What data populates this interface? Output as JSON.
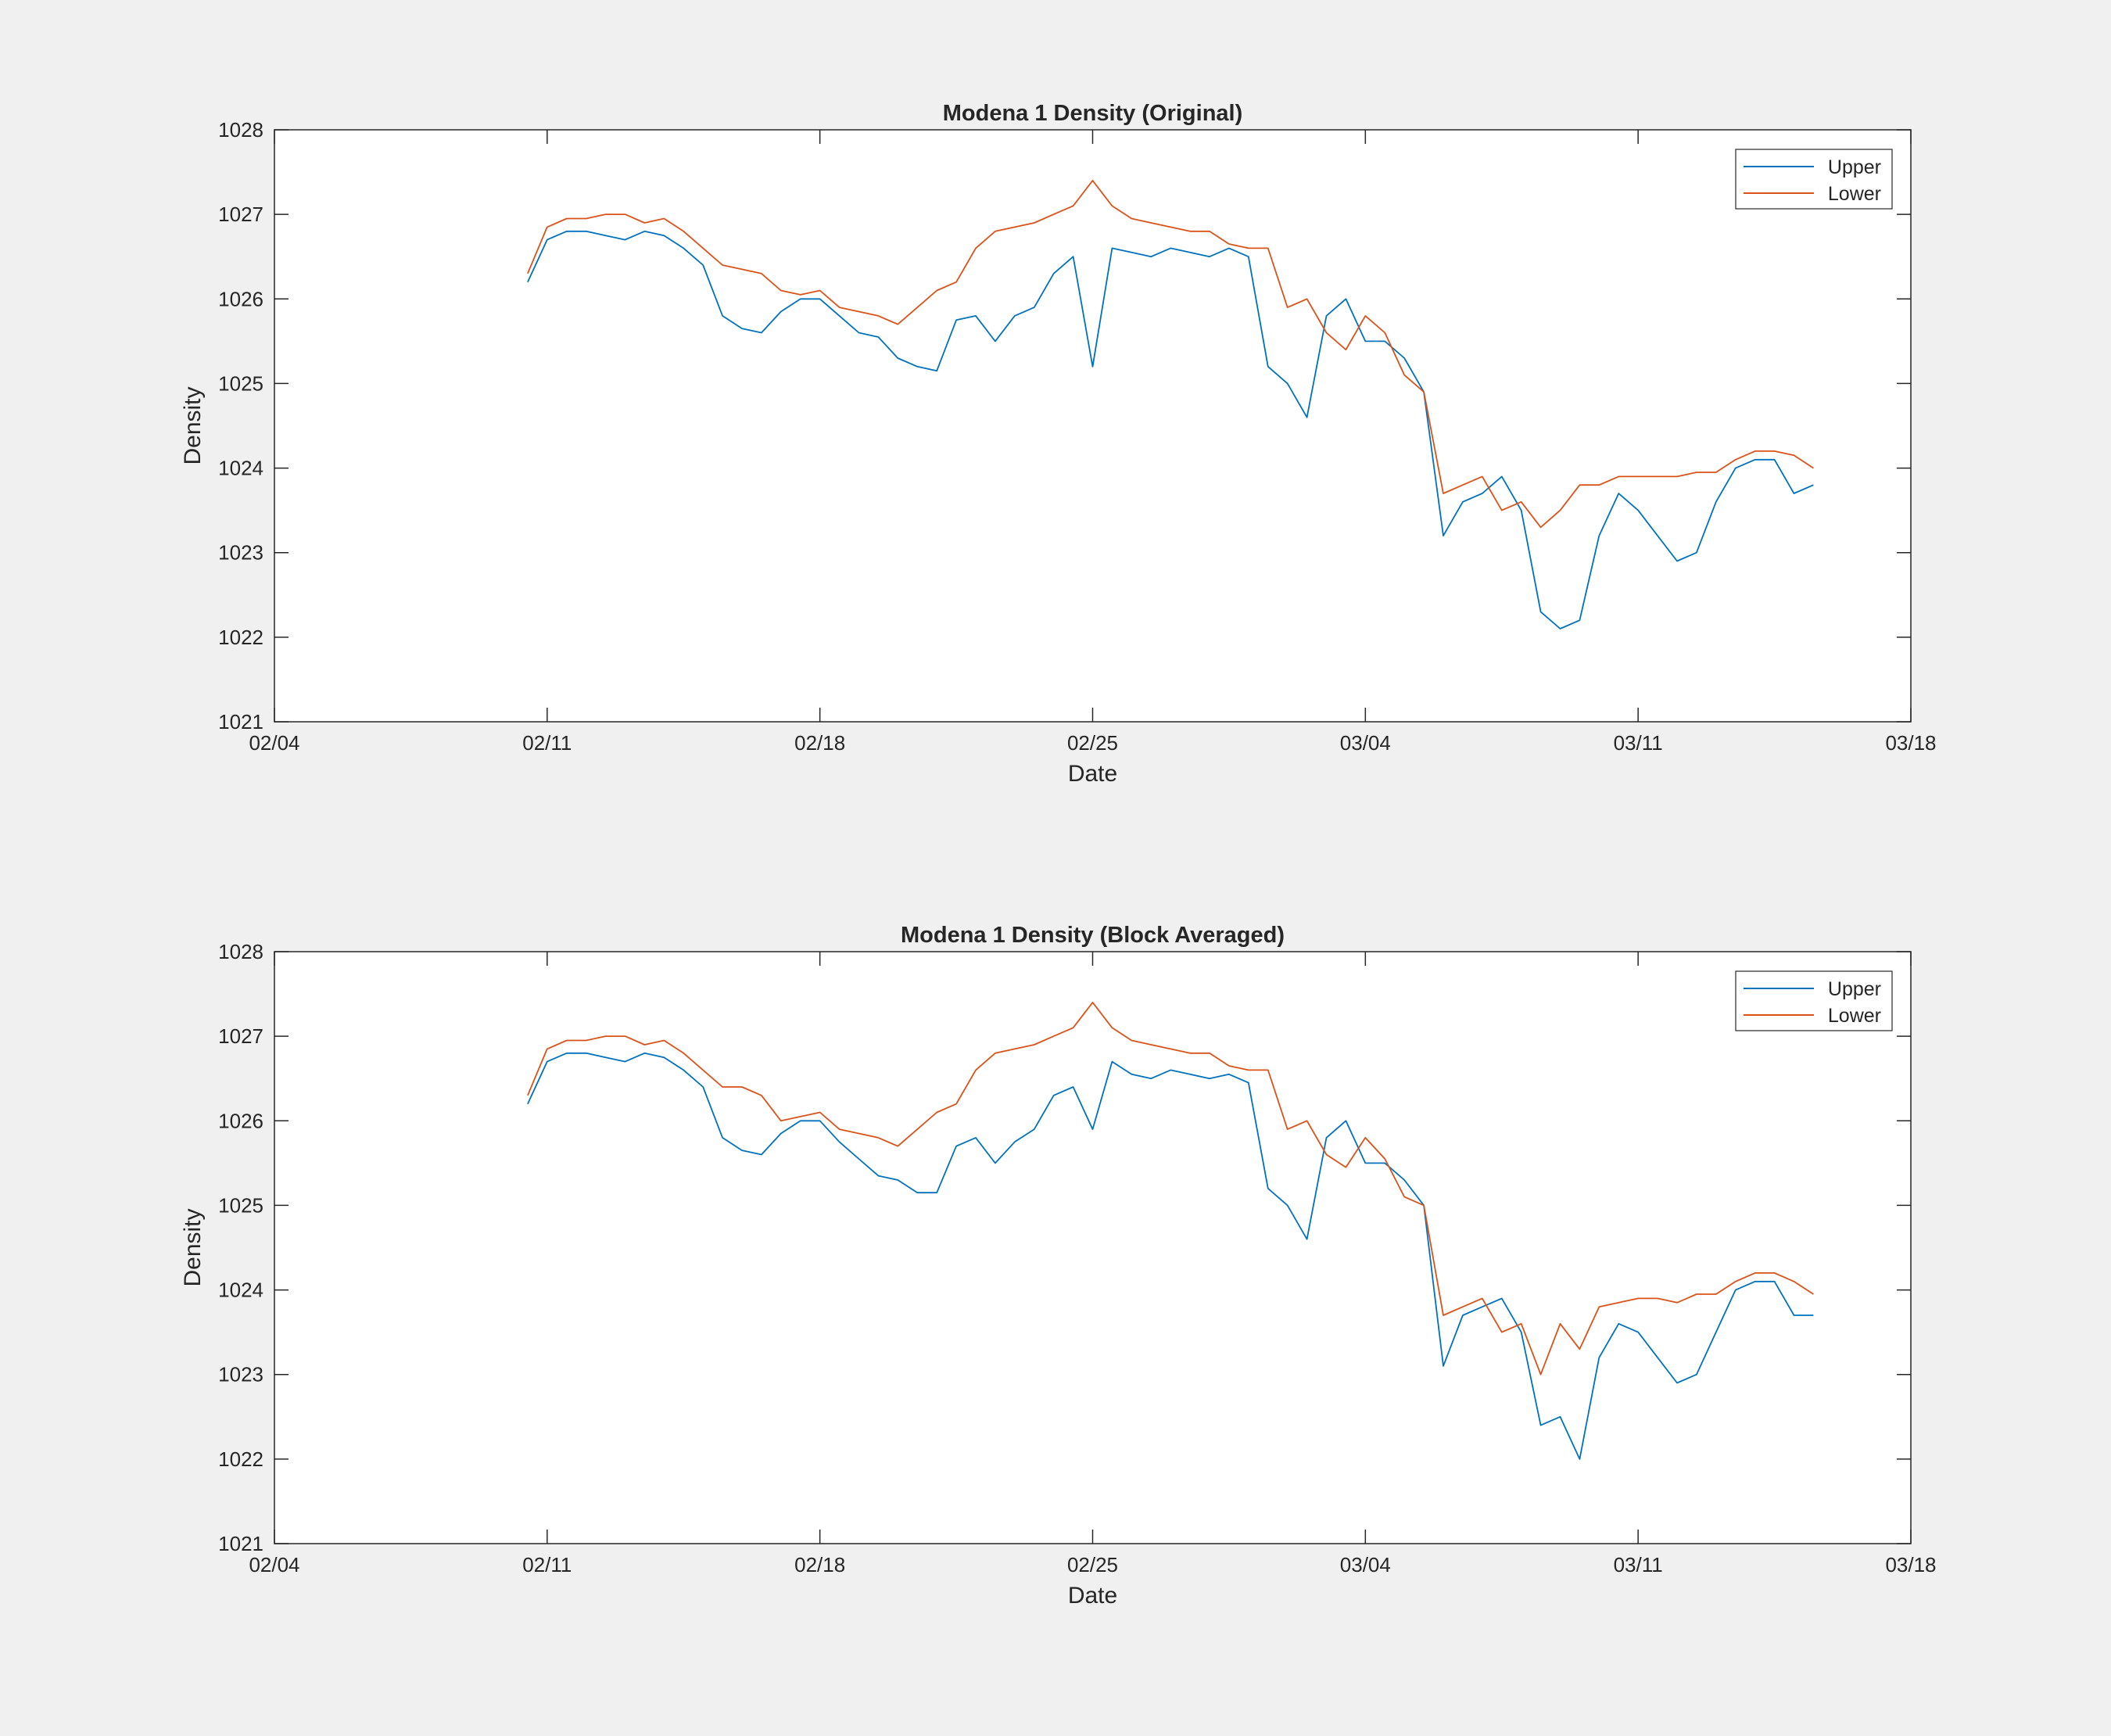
{
  "figure": {
    "background": "#f0f0f0"
  },
  "colors": {
    "upper": "#0072bd",
    "lower": "#d95319"
  },
  "chart_data": [
    {
      "type": "line",
      "title": "Modena 1 Density (Original)",
      "xlabel": "Date",
      "ylabel": "Density",
      "xlim": [
        "2023-02-04",
        "2023-03-18"
      ],
      "ylim": [
        1021,
        1028
      ],
      "xtick_labels": [
        "02/04",
        "02/11",
        "02/18",
        "02/25",
        "03/04",
        "03/11",
        "03/18"
      ],
      "ytick_labels": [
        "1021",
        "1022",
        "1023",
        "1024",
        "1025",
        "1026",
        "1027",
        "1028"
      ],
      "legend": {
        "position": "top-right",
        "entries": [
          "Upper",
          "Lower"
        ]
      },
      "grid": false,
      "series": [
        {
          "name": "Upper",
          "color": "#0072bd",
          "x": [
            "2023-02-10 12:00",
            "2023-02-11 00:00",
            "2023-02-11 12:00",
            "2023-02-12 00:00",
            "2023-02-12 12:00",
            "2023-02-13 00:00",
            "2023-02-13 12:00",
            "2023-02-14 00:00",
            "2023-02-14 12:00",
            "2023-02-15 00:00",
            "2023-02-15 12:00",
            "2023-02-16 00:00",
            "2023-02-16 12:00",
            "2023-02-17 00:00",
            "2023-02-17 12:00",
            "2023-02-18 00:00",
            "2023-02-18 12:00",
            "2023-02-19 00:00",
            "2023-02-19 12:00",
            "2023-02-20 00:00",
            "2023-02-20 12:00",
            "2023-02-21 00:00",
            "2023-02-21 12:00",
            "2023-02-22 00:00",
            "2023-02-22 12:00",
            "2023-02-23 00:00",
            "2023-02-23 12:00",
            "2023-02-24 00:00",
            "2023-02-24 12:00",
            "2023-02-25 00:00",
            "2023-02-25 12:00",
            "2023-02-26 00:00",
            "2023-02-26 12:00",
            "2023-02-27 00:00",
            "2023-02-27 12:00",
            "2023-02-28 00:00",
            "2023-02-28 12:00",
            "2023-03-01 00:00",
            "2023-03-01 12:00",
            "2023-03-02 00:00",
            "2023-03-02 12:00",
            "2023-03-03 00:00",
            "2023-03-03 12:00",
            "2023-03-04 00:00",
            "2023-03-04 12:00",
            "2023-03-05 00:00",
            "2023-03-05 12:00",
            "2023-03-06 00:00",
            "2023-03-06 12:00",
            "2023-03-07 00:00",
            "2023-03-07 12:00",
            "2023-03-08 00:00",
            "2023-03-08 12:00",
            "2023-03-09 00:00",
            "2023-03-09 12:00",
            "2023-03-10 00:00",
            "2023-03-10 12:00",
            "2023-03-11 00:00",
            "2023-03-11 12:00",
            "2023-03-12 00:00",
            "2023-03-12 12:00",
            "2023-03-13 00:00",
            "2023-03-13 12:00",
            "2023-03-14 00:00",
            "2023-03-14 12:00",
            "2023-03-15 00:00",
            "2023-03-15 12:00"
          ],
          "values": [
            1026.2,
            1026.7,
            1026.8,
            1026.8,
            1026.75,
            1026.7,
            1026.8,
            1026.75,
            1026.6,
            1026.4,
            1025.8,
            1025.65,
            1025.6,
            1025.85,
            1026.0,
            1026.0,
            1025.8,
            1025.6,
            1025.55,
            1025.3,
            1025.2,
            1025.15,
            1025.75,
            1025.8,
            1025.5,
            1025.8,
            1025.9,
            1026.3,
            1026.5,
            1025.2,
            1026.6,
            1026.55,
            1026.5,
            1026.6,
            1026.55,
            1026.5,
            1026.6,
            1026.5,
            1025.2,
            1025.0,
            1024.6,
            1025.8,
            1026.0,
            1025.5,
            1025.5,
            1025.3,
            1024.9,
            1023.2,
            1023.6,
            1023.7,
            1023.9,
            1023.5,
            1022.3,
            1022.1,
            1022.2,
            1023.2,
            1023.7,
            1023.5,
            1023.2,
            1022.9,
            1023.0,
            1023.6,
            1024.0,
            1024.1,
            1024.1,
            1023.7,
            1023.8
          ]
        },
        {
          "name": "Lower",
          "color": "#d95319",
          "x": [
            "2023-02-10 12:00",
            "2023-02-11 00:00",
            "2023-02-11 12:00",
            "2023-02-12 00:00",
            "2023-02-12 12:00",
            "2023-02-13 00:00",
            "2023-02-13 12:00",
            "2023-02-14 00:00",
            "2023-02-14 12:00",
            "2023-02-15 00:00",
            "2023-02-15 12:00",
            "2023-02-16 00:00",
            "2023-02-16 12:00",
            "2023-02-17 00:00",
            "2023-02-17 12:00",
            "2023-02-18 00:00",
            "2023-02-18 12:00",
            "2023-02-19 00:00",
            "2023-02-19 12:00",
            "2023-02-20 00:00",
            "2023-02-20 12:00",
            "2023-02-21 00:00",
            "2023-02-21 12:00",
            "2023-02-22 00:00",
            "2023-02-22 12:00",
            "2023-02-23 00:00",
            "2023-02-23 12:00",
            "2023-02-24 00:00",
            "2023-02-24 12:00",
            "2023-02-25 00:00",
            "2023-02-25 12:00",
            "2023-02-26 00:00",
            "2023-02-26 12:00",
            "2023-02-27 00:00",
            "2023-02-27 12:00",
            "2023-02-28 00:00",
            "2023-02-28 12:00",
            "2023-03-01 00:00",
            "2023-03-01 12:00",
            "2023-03-02 00:00",
            "2023-03-02 12:00",
            "2023-03-03 00:00",
            "2023-03-03 12:00",
            "2023-03-04 00:00",
            "2023-03-04 12:00",
            "2023-03-05 00:00",
            "2023-03-05 12:00",
            "2023-03-06 00:00",
            "2023-03-06 12:00",
            "2023-03-07 00:00",
            "2023-03-07 12:00",
            "2023-03-08 00:00",
            "2023-03-08 12:00",
            "2023-03-09 00:00",
            "2023-03-09 12:00",
            "2023-03-10 00:00",
            "2023-03-10 12:00",
            "2023-03-11 00:00",
            "2023-03-11 12:00",
            "2023-03-12 00:00",
            "2023-03-12 12:00",
            "2023-03-13 00:00",
            "2023-03-13 12:00",
            "2023-03-14 00:00",
            "2023-03-14 12:00",
            "2023-03-15 00:00",
            "2023-03-15 12:00"
          ],
          "values": [
            1026.3,
            1026.85,
            1026.95,
            1026.95,
            1027.0,
            1027.0,
            1026.9,
            1026.95,
            1026.8,
            1026.6,
            1026.4,
            1026.35,
            1026.3,
            1026.1,
            1026.05,
            1026.1,
            1025.9,
            1025.85,
            1025.8,
            1025.7,
            1025.9,
            1026.1,
            1026.2,
            1026.6,
            1026.8,
            1026.85,
            1026.9,
            1027.0,
            1027.1,
            1027.4,
            1027.1,
            1026.95,
            1026.9,
            1026.85,
            1026.8,
            1026.8,
            1026.65,
            1026.6,
            1026.6,
            1025.9,
            1026.0,
            1025.6,
            1025.4,
            1025.8,
            1025.6,
            1025.1,
            1024.9,
            1023.7,
            1023.8,
            1023.9,
            1023.5,
            1023.6,
            1023.3,
            1023.5,
            1023.8,
            1023.8,
            1023.9,
            1023.9,
            1023.9,
            1023.9,
            1023.95,
            1023.95,
            1024.1,
            1024.2,
            1024.2,
            1024.15,
            1024.0
          ]
        }
      ]
    },
    {
      "type": "line",
      "title": "Modena 1 Density (Block Averaged)",
      "xlabel": "Date",
      "ylabel": "Density",
      "xlim": [
        "2023-02-04",
        "2023-03-18"
      ],
      "ylim": [
        1021,
        1028
      ],
      "xtick_labels": [
        "02/04",
        "02/11",
        "02/18",
        "02/25",
        "03/04",
        "03/11",
        "03/18"
      ],
      "ytick_labels": [
        "1021",
        "1022",
        "1023",
        "1024",
        "1025",
        "1026",
        "1027",
        "1028"
      ],
      "legend": {
        "position": "top-right",
        "entries": [
          "Upper",
          "Lower"
        ]
      },
      "grid": false,
      "series": [
        {
          "name": "Upper",
          "color": "#0072bd",
          "x": [
            "2023-02-10 12:00",
            "2023-02-11 00:00",
            "2023-02-11 12:00",
            "2023-02-12 00:00",
            "2023-02-12 12:00",
            "2023-02-13 00:00",
            "2023-02-13 12:00",
            "2023-02-14 00:00",
            "2023-02-14 12:00",
            "2023-02-15 00:00",
            "2023-02-15 12:00",
            "2023-02-16 00:00",
            "2023-02-16 12:00",
            "2023-02-17 00:00",
            "2023-02-17 12:00",
            "2023-02-18 00:00",
            "2023-02-18 12:00",
            "2023-02-19 00:00",
            "2023-02-19 12:00",
            "2023-02-20 00:00",
            "2023-02-20 12:00",
            "2023-02-21 00:00",
            "2023-02-21 12:00",
            "2023-02-22 00:00",
            "2023-02-22 12:00",
            "2023-02-23 00:00",
            "2023-02-23 12:00",
            "2023-02-24 00:00",
            "2023-02-24 12:00",
            "2023-02-25 00:00",
            "2023-02-25 12:00",
            "2023-02-26 00:00",
            "2023-02-26 12:00",
            "2023-02-27 00:00",
            "2023-02-27 12:00",
            "2023-02-28 00:00",
            "2023-02-28 12:00",
            "2023-03-01 00:00",
            "2023-03-01 12:00",
            "2023-03-02 00:00",
            "2023-03-02 12:00",
            "2023-03-03 00:00",
            "2023-03-03 12:00",
            "2023-03-04 00:00",
            "2023-03-04 12:00",
            "2023-03-05 00:00",
            "2023-03-05 12:00",
            "2023-03-06 00:00",
            "2023-03-06 12:00",
            "2023-03-07 00:00",
            "2023-03-07 12:00",
            "2023-03-08 00:00",
            "2023-03-08 12:00",
            "2023-03-09 00:00",
            "2023-03-09 12:00",
            "2023-03-10 00:00",
            "2023-03-10 12:00",
            "2023-03-11 00:00",
            "2023-03-11 12:00",
            "2023-03-12 00:00",
            "2023-03-12 12:00",
            "2023-03-13 00:00",
            "2023-03-13 12:00",
            "2023-03-14 00:00",
            "2023-03-14 12:00",
            "2023-03-15 00:00",
            "2023-03-15 12:00"
          ],
          "values": [
            1026.2,
            1026.7,
            1026.8,
            1026.8,
            1026.75,
            1026.7,
            1026.8,
            1026.75,
            1026.6,
            1026.4,
            1025.8,
            1025.65,
            1025.6,
            1025.85,
            1026.0,
            1026.0,
            1025.75,
            1025.55,
            1025.35,
            1025.3,
            1025.15,
            1025.15,
            1025.7,
            1025.8,
            1025.5,
            1025.75,
            1025.9,
            1026.3,
            1026.4,
            1025.9,
            1026.7,
            1026.55,
            1026.5,
            1026.6,
            1026.55,
            1026.5,
            1026.55,
            1026.45,
            1025.2,
            1025.0,
            1024.6,
            1025.8,
            1026.0,
            1025.5,
            1025.5,
            1025.3,
            1025.0,
            1023.1,
            1023.7,
            1023.8,
            1023.9,
            1023.5,
            1022.4,
            1022.5,
            1022.0,
            1023.2,
            1023.6,
            1023.5,
            1023.2,
            1022.9,
            1023.0,
            1023.5,
            1024.0,
            1024.1,
            1024.1,
            1023.7,
            1023.7
          ]
        },
        {
          "name": "Lower",
          "color": "#d95319",
          "x": [
            "2023-02-10 12:00",
            "2023-02-11 00:00",
            "2023-02-11 12:00",
            "2023-02-12 00:00",
            "2023-02-12 12:00",
            "2023-02-13 00:00",
            "2023-02-13 12:00",
            "2023-02-14 00:00",
            "2023-02-14 12:00",
            "2023-02-15 00:00",
            "2023-02-15 12:00",
            "2023-02-16 00:00",
            "2023-02-16 12:00",
            "2023-02-17 00:00",
            "2023-02-17 12:00",
            "2023-02-18 00:00",
            "2023-02-18 12:00",
            "2023-02-19 00:00",
            "2023-02-19 12:00",
            "2023-02-20 00:00",
            "2023-02-20 12:00",
            "2023-02-21 00:00",
            "2023-02-21 12:00",
            "2023-02-22 00:00",
            "2023-02-22 12:00",
            "2023-02-23 00:00",
            "2023-02-23 12:00",
            "2023-02-24 00:00",
            "2023-02-24 12:00",
            "2023-02-25 00:00",
            "2023-02-25 12:00",
            "2023-02-26 00:00",
            "2023-02-26 12:00",
            "2023-02-27 00:00",
            "2023-02-27 12:00",
            "2023-02-28 00:00",
            "2023-02-28 12:00",
            "2023-03-01 00:00",
            "2023-03-01 12:00",
            "2023-03-02 00:00",
            "2023-03-02 12:00",
            "2023-03-03 00:00",
            "2023-03-03 12:00",
            "2023-03-04 00:00",
            "2023-03-04 12:00",
            "2023-03-05 00:00",
            "2023-03-05 12:00",
            "2023-03-06 00:00",
            "2023-03-06 12:00",
            "2023-03-07 00:00",
            "2023-03-07 12:00",
            "2023-03-08 00:00",
            "2023-03-08 12:00",
            "2023-03-09 00:00",
            "2023-03-09 12:00",
            "2023-03-10 00:00",
            "2023-03-10 12:00",
            "2023-03-11 00:00",
            "2023-03-11 12:00",
            "2023-03-12 00:00",
            "2023-03-12 12:00",
            "2023-03-13 00:00",
            "2023-03-13 12:00",
            "2023-03-14 00:00",
            "2023-03-14 12:00",
            "2023-03-15 00:00",
            "2023-03-15 12:00"
          ],
          "values": [
            1026.3,
            1026.85,
            1026.95,
            1026.95,
            1027.0,
            1027.0,
            1026.9,
            1026.95,
            1026.8,
            1026.6,
            1026.4,
            1026.4,
            1026.3,
            1026.0,
            1026.05,
            1026.1,
            1025.9,
            1025.85,
            1025.8,
            1025.7,
            1025.9,
            1026.1,
            1026.2,
            1026.6,
            1026.8,
            1026.85,
            1026.9,
            1027.0,
            1027.1,
            1027.4,
            1027.1,
            1026.95,
            1026.9,
            1026.85,
            1026.8,
            1026.8,
            1026.65,
            1026.6,
            1026.6,
            1025.9,
            1026.0,
            1025.6,
            1025.45,
            1025.8,
            1025.55,
            1025.1,
            1025.0,
            1023.7,
            1023.8,
            1023.9,
            1023.5,
            1023.6,
            1023.0,
            1023.6,
            1023.3,
            1023.8,
            1023.85,
            1023.9,
            1023.9,
            1023.85,
            1023.95,
            1023.95,
            1024.1,
            1024.2,
            1024.2,
            1024.1,
            1023.95
          ]
        }
      ]
    }
  ]
}
